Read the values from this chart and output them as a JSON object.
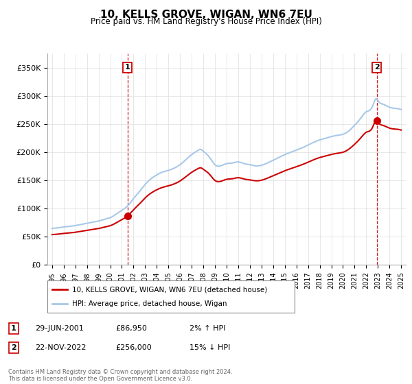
{
  "title": "10, KELLS GROVE, WIGAN, WN6 7EU",
  "subtitle": "Price paid vs. HM Land Registry's House Price Index (HPI)",
  "ylabel_ticks": [
    "£0",
    "£50K",
    "£100K",
    "£150K",
    "£200K",
    "£250K",
    "£300K",
    "£350K"
  ],
  "ytick_values": [
    0,
    50000,
    100000,
    150000,
    200000,
    250000,
    300000,
    350000
  ],
  "ylim": [
    0,
    375000
  ],
  "xlim_start": 1994.6,
  "xlim_end": 2025.4,
  "sale1_date": 2001.49,
  "sale1_price": 86950,
  "sale1_date_str": "29-JUN-2001",
  "sale1_pct": "2% ↑ HPI",
  "sale2_date": 2022.9,
  "sale2_price": 256000,
  "sale2_date_str": "22-NOV-2022",
  "sale2_pct": "15% ↓ HPI",
  "hpi_line_color": "#a8c8e8",
  "price_line_color": "#cc0000",
  "dashed_line_color": "#cc0000",
  "sale_marker_color": "#cc0000",
  "legend_label1": "10, KELLS GROVE, WIGAN, WN6 7EU (detached house)",
  "legend_label2": "HPI: Average price, detached house, Wigan",
  "footer": "Contains HM Land Registry data © Crown copyright and database right 2024.\nThis data is licensed under the Open Government Licence v3.0.",
  "xtick_years": [
    1995,
    1996,
    1997,
    1998,
    1999,
    2000,
    2001,
    2002,
    2003,
    2004,
    2005,
    2006,
    2007,
    2008,
    2009,
    2010,
    2011,
    2012,
    2013,
    2014,
    2015,
    2016,
    2017,
    2018,
    2019,
    2020,
    2021,
    2022,
    2023,
    2024,
    2025
  ],
  "fig_width": 6.0,
  "fig_height": 5.6,
  "dpi": 100
}
